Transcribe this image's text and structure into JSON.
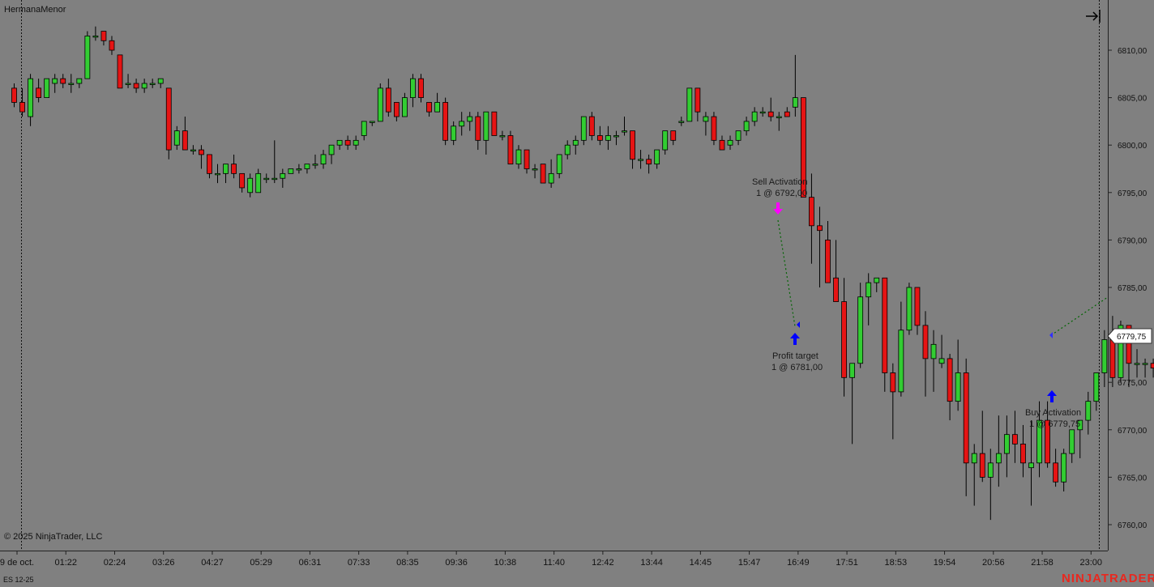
{
  "instrument_name": "HermanaMenor",
  "copyright": "© 2025 NinjaTrader, LLC",
  "contract": "ES 12-25",
  "brand": "NINJATRADER",
  "current_price_label": "6779,75",
  "colors": {
    "background": "#808080",
    "up": "#32cd32",
    "down": "#e61414",
    "wick": "#000000",
    "sell_arrow": "#ff00ff",
    "buy_arrow": "#0000ff",
    "trade_line": "#006400",
    "brand": "#e8281f"
  },
  "icons": {
    "scroll_end": "arrow-right-bar-icon",
    "sell_marker": "arrow-down-icon",
    "buy_marker": "arrow-up-icon"
  },
  "annotations": {
    "sell_activation": {
      "title": "Sell Activation",
      "detail": "1 @ 6792,00"
    },
    "profit_target": {
      "title": "Profit target",
      "detail": "1 @ 6781,00"
    },
    "buy_activation": {
      "title": "Buy Activation",
      "detail": "1 @ 6779,75"
    }
  },
  "chart_data": {
    "type": "candlestick",
    "price_axis": {
      "position": "right",
      "ylim": [
        6757.5,
        6815.0
      ],
      "ticks": [
        "6760,00",
        "6765,00",
        "6770,00",
        "6775,00",
        "6780,00",
        "6785,00",
        "6790,00",
        "6795,00",
        "6800,00",
        "6805,00",
        "6810,00"
      ],
      "tick_values": [
        6760,
        6765,
        6770,
        6775,
        6780,
        6785,
        6790,
        6795,
        6800,
        6805,
        6810
      ]
    },
    "time_axis": {
      "labels": [
        "9 de oct.",
        "01:22",
        "02:24",
        "03:26",
        "04:27",
        "05:29",
        "06:31",
        "07:33",
        "08:35",
        "09:36",
        "10:38",
        "11:40",
        "12:42",
        "13:44",
        "14:45",
        "15:47",
        "16:49",
        "17:51",
        "18:53",
        "19:54",
        "20:56",
        "21:58",
        "23:00"
      ],
      "label_bar_index": [
        0,
        6,
        12,
        18,
        24,
        30,
        36,
        42,
        48,
        54,
        60,
        66,
        72,
        78,
        84,
        90,
        96,
        102,
        108,
        114,
        120,
        126,
        132
      ]
    },
    "ohlc": [
      [
        6806,
        6806.5,
        6804,
        6804.5
      ],
      [
        6804.5,
        6806,
        6803,
        6803.5
      ],
      [
        6803,
        6807.5,
        6802,
        6807
      ],
      [
        6806,
        6807,
        6804.5,
        6805
      ],
      [
        6805,
        6807,
        6805,
        6807
      ],
      [
        6806.5,
        6807.5,
        6805.5,
        6807
      ],
      [
        6807,
        6807.5,
        6806,
        6806.5
      ],
      [
        6806.5,
        6807.5,
        6805.5,
        6806.5
      ],
      [
        6806.5,
        6807,
        6806,
        6807
      ],
      [
        6807,
        6812,
        6807,
        6811.5
      ],
      [
        6811.5,
        6812.5,
        6811,
        6811.5
      ],
      [
        6812,
        6812,
        6810.5,
        6811
      ],
      [
        6811,
        6811.5,
        6809.5,
        6810
      ],
      [
        6809.5,
        6809.5,
        6806,
        6806
      ],
      [
        6806.5,
        6807.5,
        6806,
        6806.5
      ],
      [
        6806.5,
        6807,
        6805.5,
        6806
      ],
      [
        6806,
        6807,
        6805.5,
        6806.5
      ],
      [
        6806.5,
        6807,
        6806,
        6806.5
      ],
      [
        6806.5,
        6807,
        6806,
        6807
      ],
      [
        6806,
        6806,
        6798.5,
        6799.5
      ],
      [
        6800,
        6802,
        6799.5,
        6801.5
      ],
      [
        6801.5,
        6803,
        6799.5,
        6799.5
      ],
      [
        6799.5,
        6800,
        6799,
        6799.5
      ],
      [
        6799.5,
        6800,
        6797.5,
        6799
      ],
      [
        6799,
        6799,
        6796.5,
        6797
      ],
      [
        6797,
        6798,
        6796,
        6797
      ],
      [
        6797,
        6798,
        6796,
        6798
      ],
      [
        6798,
        6799,
        6796.5,
        6797
      ],
      [
        6797,
        6797,
        6795,
        6795.5
      ],
      [
        6795,
        6797,
        6794.5,
        6796.5
      ],
      [
        6795,
        6797.5,
        6795,
        6797
      ],
      [
        6796.5,
        6797,
        6796,
        6796.5
      ],
      [
        6796.5,
        6800.5,
        6796,
        6796.5
      ],
      [
        6796.5,
        6797.5,
        6795.5,
        6797
      ],
      [
        6797,
        6797.5,
        6797,
        6797.5
      ],
      [
        6797.5,
        6798,
        6797,
        6797.5
      ],
      [
        6797.5,
        6798,
        6797,
        6798
      ],
      [
        6798,
        6799,
        6797.5,
        6798
      ],
      [
        6798,
        6799.5,
        6797.5,
        6799
      ],
      [
        6799,
        6800,
        6798,
        6800
      ],
      [
        6800,
        6800.5,
        6799.5,
        6800.5
      ],
      [
        6800.5,
        6801,
        6799.5,
        6800
      ],
      [
        6800,
        6801,
        6799.5,
        6800.5
      ],
      [
        6801,
        6802.5,
        6800.5,
        6802.5
      ],
      [
        6802.5,
        6802.5,
        6802,
        6802.5
      ],
      [
        6802.5,
        6806.5,
        6802.5,
        6806
      ],
      [
        6806,
        6807,
        6803,
        6803.5
      ],
      [
        6804.5,
        6804.5,
        6802.5,
        6803
      ],
      [
        6803,
        6805.5,
        6803,
        6805
      ],
      [
        6805,
        6807.5,
        6804,
        6807
      ],
      [
        6807,
        6807.5,
        6804.5,
        6805
      ],
      [
        6804.5,
        6804.5,
        6803,
        6803.5
      ],
      [
        6803.5,
        6805.5,
        6803.5,
        6804.5
      ],
      [
        6804.5,
        6805,
        6800,
        6800.5
      ],
      [
        6800.5,
        6802.5,
        6800,
        6802
      ],
      [
        6802,
        6803.5,
        6801,
        6802.5
      ],
      [
        6802.5,
        6803.5,
        6801.5,
        6803
      ],
      [
        6803,
        6803.5,
        6799.5,
        6800.5
      ],
      [
        6800.5,
        6803.5,
        6799,
        6803.5
      ],
      [
        6803.5,
        6803.5,
        6801,
        6801
      ],
      [
        6801,
        6801.5,
        6800.5,
        6801
      ],
      [
        6801,
        6801.5,
        6798,
        6798
      ],
      [
        6798,
        6800,
        6797.5,
        6799.5
      ],
      [
        6799.5,
        6799.5,
        6797,
        6797.5
      ],
      [
        6797.5,
        6798,
        6796.5,
        6797.5
      ],
      [
        6798,
        6798,
        6796,
        6796
      ],
      [
        6796,
        6798.5,
        6795.5,
        6797
      ],
      [
        6797,
        6799,
        6796.5,
        6799
      ],
      [
        6799,
        6800.5,
        6798.5,
        6800
      ],
      [
        6800,
        6801,
        6799,
        6800.5
      ],
      [
        6800.5,
        6803,
        6800,
        6803
      ],
      [
        6803,
        6803.5,
        6800.5,
        6801
      ],
      [
        6801,
        6802,
        6800,
        6800.5
      ],
      [
        6800.5,
        6802,
        6799.5,
        6801
      ],
      [
        6801,
        6801.5,
        6800,
        6801
      ],
      [
        6801.5,
        6803,
        6801,
        6801.5
      ],
      [
        6801.5,
        6801.5,
        6797.5,
        6798.5
      ],
      [
        6798.5,
        6799.5,
        6797.5,
        6798.5
      ],
      [
        6798.5,
        6799,
        6797,
        6798
      ],
      [
        6798,
        6799,
        6797.5,
        6799.5
      ],
      [
        6799.5,
        6801.5,
        6799,
        6801.5
      ],
      [
        6801.5,
        6801.5,
        6800,
        6800.5
      ],
      [
        6802.5,
        6803,
        6802,
        6802.5
      ],
      [
        6802.5,
        6806,
        6802.5,
        6806
      ],
      [
        6806,
        6806,
        6802.5,
        6803.5
      ],
      [
        6802.5,
        6803.5,
        6801,
        6803
      ],
      [
        6803,
        6803.5,
        6800,
        6800.5
      ],
      [
        6800.5,
        6801,
        6799.5,
        6799.5
      ],
      [
        6800,
        6801,
        6799.5,
        6800.5
      ],
      [
        6800.5,
        6801.5,
        6800,
        6801.5
      ],
      [
        6801.5,
        6803,
        6801,
        6802.5
      ],
      [
        6802.5,
        6804,
        6802,
        6803.5
      ],
      [
        6803.5,
        6804,
        6803,
        6803.5
      ],
      [
        6803.5,
        6805,
        6802.5,
        6803
      ],
      [
        6803,
        6803.5,
        6801.5,
        6803
      ],
      [
        6803.5,
        6804,
        6803,
        6803
      ],
      [
        6804,
        6809.5,
        6803,
        6805
      ],
      [
        6805,
        6805,
        6794.5,
        6794.5
      ],
      [
        6794.5,
        6797,
        6787.5,
        6791.5
      ],
      [
        6791.5,
        6793.5,
        6785,
        6791
      ],
      [
        6790,
        6792,
        6786,
        6785.5
      ],
      [
        6786,
        6790,
        6784,
        6783.5
      ],
      [
        6783.5,
        6786,
        6773.5,
        6775.5
      ],
      [
        6775.5,
        6777,
        6768.5,
        6777
      ],
      [
        6777,
        6785.5,
        6776.5,
        6784
      ],
      [
        6784,
        6786.5,
        6781,
        6785.5
      ],
      [
        6785.5,
        6786,
        6784.5,
        6786
      ],
      [
        6786,
        6786,
        6774,
        6776
      ],
      [
        6776,
        6777,
        6769,
        6774
      ],
      [
        6774,
        6783.5,
        6773.5,
        6780.5
      ],
      [
        6780.5,
        6785.5,
        6780,
        6785
      ],
      [
        6785,
        6785,
        6780,
        6781
      ],
      [
        6781,
        6782.5,
        6773.5,
        6777.5
      ],
      [
        6777.5,
        6780.5,
        6774,
        6779
      ],
      [
        6777,
        6780,
        6776.5,
        6777.5
      ],
      [
        6777.5,
        6778,
        6771,
        6773
      ],
      [
        6773,
        6779.5,
        6772,
        6776
      ],
      [
        6776,
        6777.5,
        6763,
        6766.5
      ],
      [
        6766.5,
        6768.5,
        6762,
        6767.5
      ],
      [
        6767.5,
        6772,
        6764.5,
        6765
      ],
      [
        6765,
        6768,
        6760.5,
        6766.5
      ],
      [
        6766.5,
        6771.5,
        6764,
        6767.5
      ],
      [
        6767.5,
        6771.5,
        6765,
        6769.5
      ],
      [
        6769.5,
        6772,
        6766.5,
        6768.5
      ],
      [
        6768.5,
        6770.5,
        6765,
        6766.5
      ],
      [
        6766,
        6771,
        6762,
        6766.5
      ],
      [
        6766.5,
        6773,
        6765,
        6771
      ],
      [
        6771,
        6773,
        6766,
        6766.5
      ],
      [
        6766.5,
        6768,
        6764,
        6764.5
      ],
      [
        6764.5,
        6768,
        6763.5,
        6767.5
      ],
      [
        6767.5,
        6770,
        6766.5,
        6770
      ],
      [
        6770,
        6771,
        6767,
        6771
      ],
      [
        6771,
        6774,
        6769.5,
        6773
      ],
      [
        6773,
        6776,
        6772,
        6776
      ],
      [
        6776,
        6780.5,
        6774.5,
        6779.5
      ],
      [
        6779.5,
        6782,
        6774.5,
        6775.5
      ],
      [
        6775.5,
        6781.5,
        6775,
        6781
      ],
      [
        6781,
        6781,
        6774.5,
        6777
      ],
      [
        6777,
        6778.5,
        6775.5,
        6777
      ],
      [
        6777,
        6777.5,
        6775.5,
        6777
      ],
      [
        6777,
        6777.5,
        6775.5,
        6776.5
      ],
      [
        6776.5,
        6778,
        6776.5,
        6777
      ],
      [
        6777,
        6780,
        6777,
        6779.75
      ]
    ]
  }
}
